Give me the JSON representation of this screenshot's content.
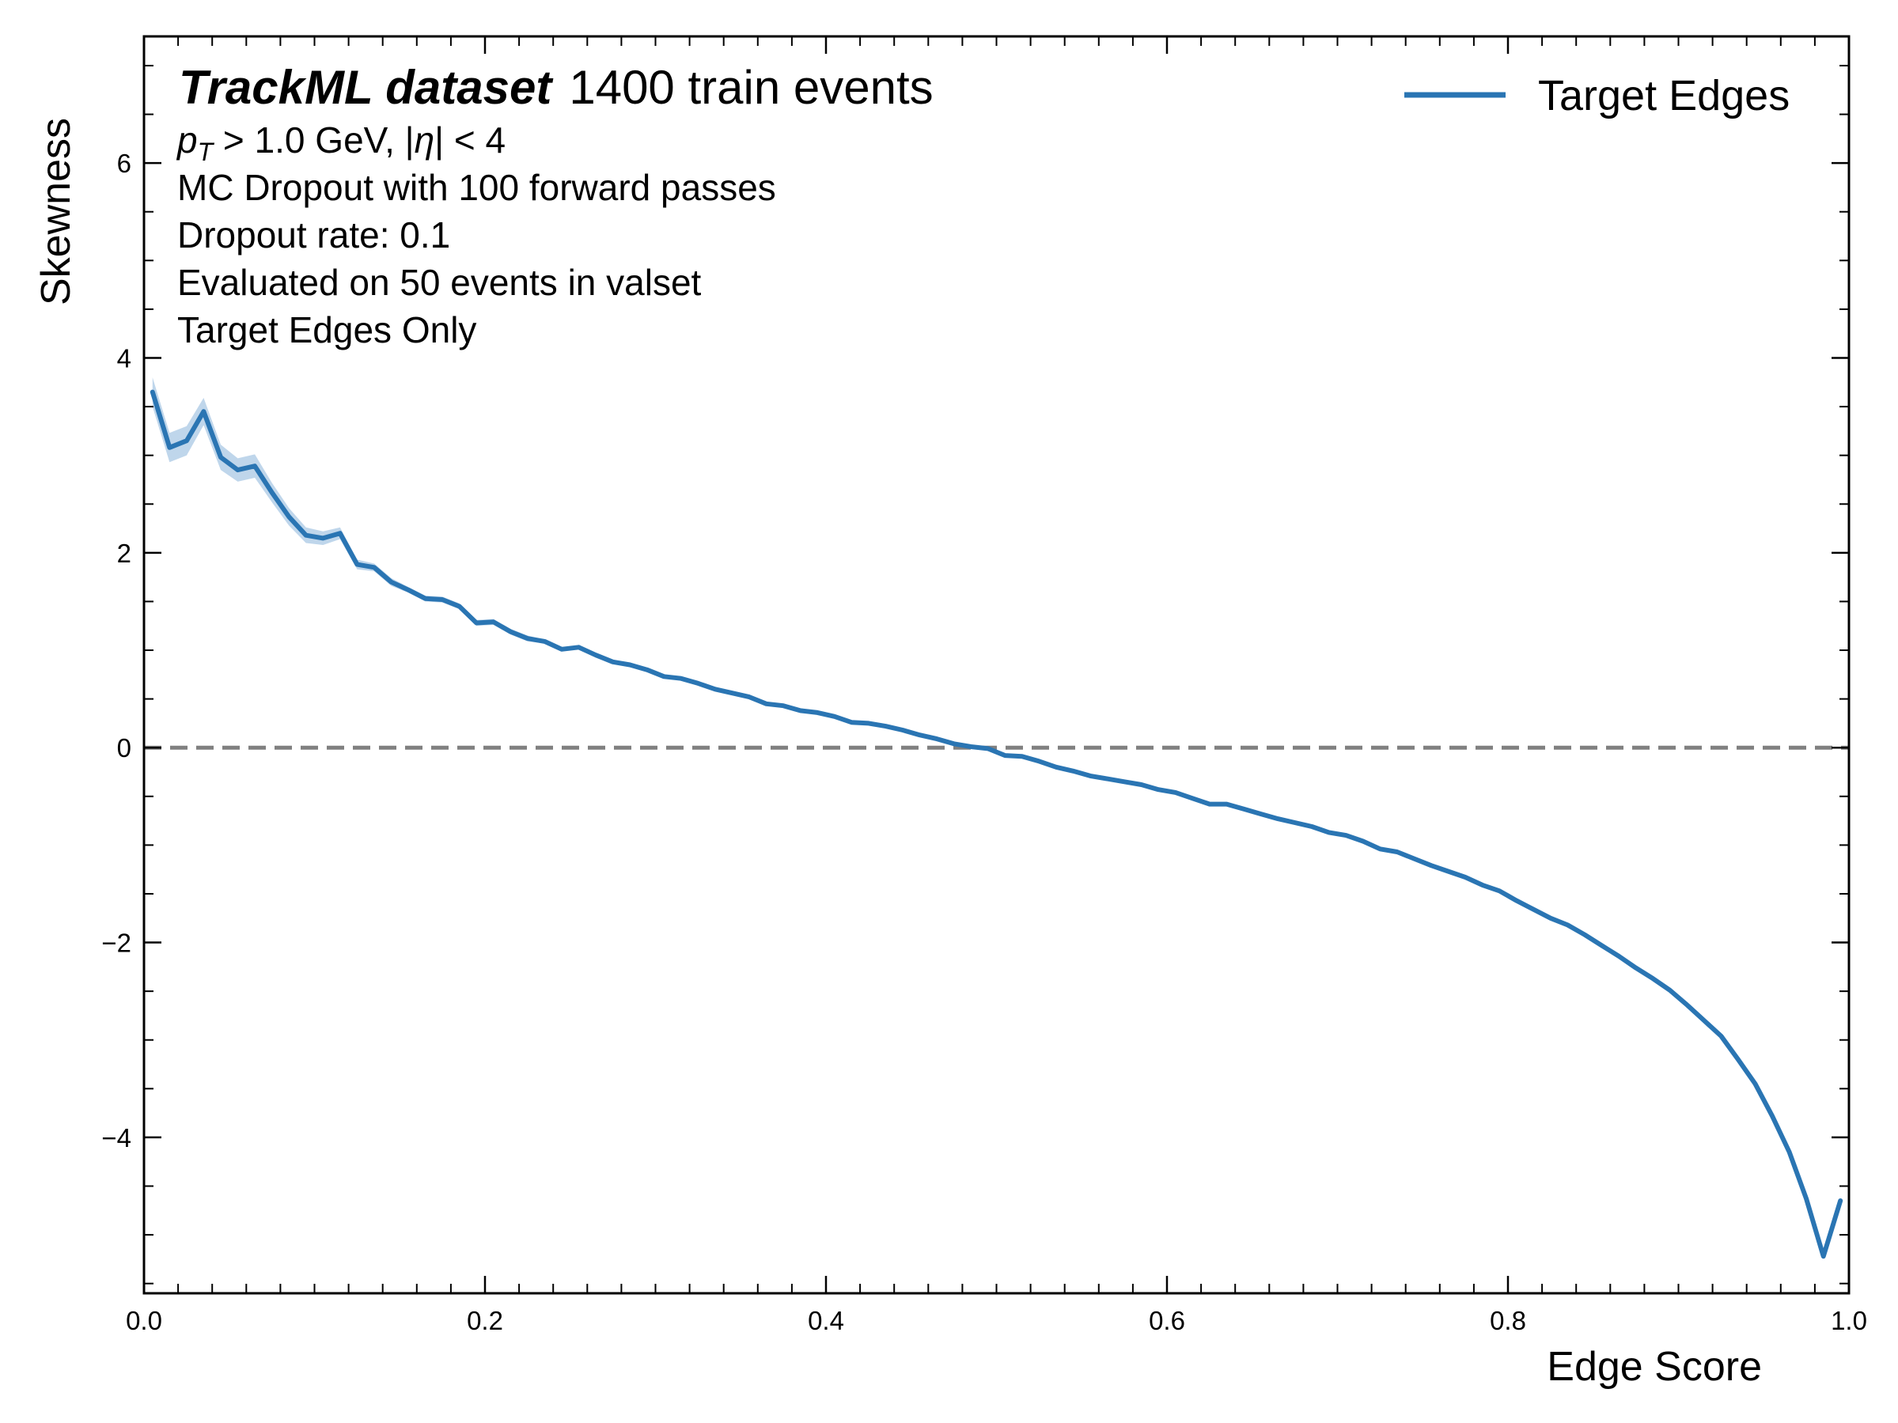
{
  "chart_data": {
    "type": "line",
    "xlabel": "Edge Score",
    "ylabel": "Skewness",
    "xlim": [
      0.0,
      1.0
    ],
    "ylim": [
      -5.6,
      7.3
    ],
    "xticks": [
      0.0,
      0.2,
      0.4,
      0.6,
      0.8,
      1.0
    ],
    "xtick_labels": [
      "0.0",
      "0.2",
      "0.4",
      "0.6",
      "0.8",
      "1.0"
    ],
    "yticks": [
      -4,
      -2,
      0,
      2,
      4,
      6
    ],
    "ytick_labels": [
      "−4",
      "−2",
      "0",
      "2",
      "4",
      "6"
    ],
    "legend_position": "top-right",
    "grid": false,
    "reference_line": {
      "y": 0,
      "style": "dashed",
      "color": "#808080"
    },
    "annotations": {
      "title_bold": "TrackML dataset",
      "title_rest": "1400 train events",
      "cut_pt_symbol": "p",
      "cut_pt_sub": "T",
      "cut_pt_rest": " > 1.0 GeV, |",
      "cut_eta_symbol": "η",
      "cut_eta_rest": "| < 4",
      "line_mc": "MC Dropout with 100 forward passes",
      "line_rate": "Dropout rate: 0.1",
      "line_eval": "Evaluated on 50 events in valset",
      "line_only": "Target Edges Only"
    },
    "series": [
      {
        "name": "Target Edges",
        "color": "#2a75b3",
        "band_color": "#a9c8e4",
        "x": [
          0.005,
          0.015,
          0.025,
          0.035,
          0.045,
          0.055,
          0.065,
          0.075,
          0.085,
          0.095,
          0.105,
          0.115,
          0.125,
          0.135,
          0.145,
          0.155,
          0.165,
          0.175,
          0.185,
          0.195,
          0.205,
          0.215,
          0.225,
          0.235,
          0.245,
          0.255,
          0.265,
          0.275,
          0.285,
          0.295,
          0.305,
          0.315,
          0.325,
          0.335,
          0.345,
          0.355,
          0.365,
          0.375,
          0.385,
          0.395,
          0.405,
          0.415,
          0.425,
          0.435,
          0.445,
          0.455,
          0.465,
          0.475,
          0.485,
          0.495,
          0.505,
          0.515,
          0.525,
          0.535,
          0.545,
          0.555,
          0.565,
          0.575,
          0.585,
          0.595,
          0.605,
          0.615,
          0.625,
          0.635,
          0.645,
          0.655,
          0.665,
          0.675,
          0.685,
          0.695,
          0.705,
          0.715,
          0.725,
          0.735,
          0.745,
          0.755,
          0.765,
          0.775,
          0.785,
          0.795,
          0.805,
          0.815,
          0.825,
          0.835,
          0.845,
          0.855,
          0.865,
          0.875,
          0.885,
          0.895,
          0.905,
          0.915,
          0.925,
          0.935,
          0.945,
          0.955,
          0.965,
          0.975,
          0.985,
          0.995
        ],
        "y": [
          3.65,
          3.08,
          3.15,
          3.45,
          2.98,
          2.85,
          2.89,
          2.62,
          2.37,
          2.18,
          2.15,
          2.2,
          1.88,
          1.85,
          1.7,
          1.62,
          1.53,
          1.52,
          1.45,
          1.28,
          1.29,
          1.19,
          1.12,
          1.09,
          1.01,
          1.03,
          0.95,
          0.88,
          0.85,
          0.8,
          0.73,
          0.71,
          0.66,
          0.6,
          0.56,
          0.52,
          0.45,
          0.43,
          0.38,
          0.36,
          0.32,
          0.26,
          0.25,
          0.22,
          0.18,
          0.13,
          0.09,
          0.04,
          0.01,
          -0.01,
          -0.08,
          -0.09,
          -0.14,
          -0.2,
          -0.24,
          -0.29,
          -0.32,
          -0.35,
          -0.38,
          -0.43,
          -0.46,
          -0.52,
          -0.58,
          -0.58,
          -0.63,
          -0.68,
          -0.73,
          -0.77,
          -0.81,
          -0.87,
          -0.9,
          -0.96,
          -1.04,
          -1.07,
          -1.14,
          -1.21,
          -1.27,
          -1.33,
          -1.41,
          -1.47,
          -1.57,
          -1.66,
          -1.75,
          -1.82,
          -1.92,
          -2.03,
          -2.14,
          -2.26,
          -2.37,
          -2.49,
          -2.64,
          -2.8,
          -2.96,
          -3.2,
          -3.45,
          -3.78,
          -4.15,
          -4.63,
          -5.22,
          -4.65
        ],
        "band_halfwidth": [
          0.15,
          0.15,
          0.15,
          0.14,
          0.13,
          0.12,
          0.12,
          0.1,
          0.09,
          0.08,
          0.07,
          0.06,
          0.05,
          0.04,
          0.04,
          0.03,
          0.03,
          0.03,
          0.03,
          0.03,
          0.03,
          0.03,
          0.03,
          0.02,
          0.02,
          0.02,
          0.02,
          0.02,
          0.02,
          0.02,
          0.02,
          0.02,
          0.02,
          0.02,
          0.02,
          0.02,
          0.02,
          0.02,
          0.02,
          0.02,
          0.02,
          0.02,
          0.02,
          0.02,
          0.02,
          0.02,
          0.02,
          0.02,
          0.02,
          0.02,
          0.02,
          0.02,
          0.02,
          0.02,
          0.02,
          0.02,
          0.02,
          0.02,
          0.02,
          0.02,
          0.02,
          0.02,
          0.02,
          0.02,
          0.02,
          0.02,
          0.02,
          0.02,
          0.02,
          0.02,
          0.02,
          0.02,
          0.02,
          0.02,
          0.02,
          0.02,
          0.02,
          0.02,
          0.02,
          0.02,
          0.02,
          0.02,
          0.02,
          0.02,
          0.02,
          0.02,
          0.02,
          0.02,
          0.02,
          0.02,
          0.02,
          0.02,
          0.02,
          0.02,
          0.02,
          0.02,
          0.02,
          0.02,
          0.02,
          0.02
        ]
      }
    ]
  }
}
